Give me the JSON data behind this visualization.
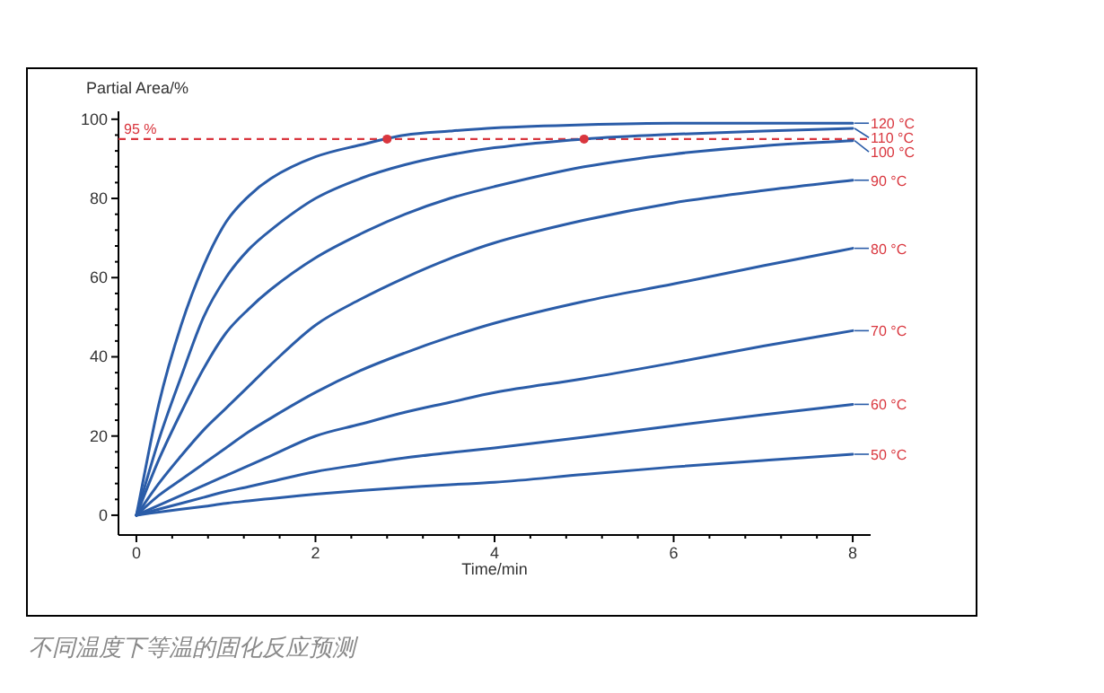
{
  "chart_data": {
    "type": "line",
    "xlabel": "Time/min",
    "ylabel": "Partial Area/%",
    "x": [
      0,
      0.25,
      0.5,
      0.75,
      1,
      1.25,
      1.5,
      2,
      2.5,
      3,
      3.5,
      4,
      5,
      6,
      7,
      8
    ],
    "xlim": [
      -0.2,
      8.2
    ],
    "xticks": [
      0,
      2,
      4,
      6,
      8
    ],
    "ylim": [
      -5,
      102
    ],
    "yticks": [
      0,
      20,
      40,
      60,
      80,
      100
    ],
    "grid": false,
    "legend": "right",
    "marker": "none",
    "line_style": "solid",
    "series": [
      {
        "name": "120 °C",
        "color": "#2a5ca8",
        "values": [
          0,
          28,
          48,
          63,
          74,
          80.5,
          85,
          90.5,
          93.5,
          96,
          97,
          97.8,
          98.6,
          99,
          99,
          99
        ]
      },
      {
        "name": "110 °C",
        "color": "#2a5ca8",
        "values": [
          0,
          19,
          35,
          50,
          60,
          67,
          72,
          80,
          85,
          88.5,
          91,
          92.8,
          95,
          96.2,
          97,
          97.7
        ]
      },
      {
        "name": "100 °C",
        "color": "#2a5ca8",
        "values": [
          0,
          14,
          26,
          37,
          46,
          52,
          57,
          65,
          71,
          76,
          80,
          83,
          88,
          91.2,
          93.3,
          94.6
        ]
      },
      {
        "name": "90 °C",
        "color": "#2a5ca8",
        "values": [
          0,
          8,
          15,
          21.5,
          27,
          32.5,
          38,
          48,
          54.5,
          60,
          64.8,
          68.8,
          74.5,
          78.9,
          82,
          84.6
        ]
      },
      {
        "name": "80 °C",
        "color": "#2a5ca8",
        "values": [
          0,
          5,
          9,
          13,
          17,
          21,
          24.5,
          31,
          36.5,
          41,
          45,
          48.5,
          54,
          58.4,
          63,
          67.4
        ]
      },
      {
        "name": "70 °C",
        "color": "#2a5ca8",
        "values": [
          0,
          2.5,
          5,
          7.5,
          10,
          12.5,
          15,
          20,
          23,
          26,
          28.5,
          31,
          34.5,
          38.5,
          42.7,
          46.6
        ]
      },
      {
        "name": "60 °C",
        "color": "#2a5ca8",
        "values": [
          0,
          1.5,
          3,
          4.5,
          6,
          7.2,
          8.5,
          11,
          12.8,
          14.5,
          15.8,
          17,
          19.7,
          22.6,
          25.4,
          28
        ]
      },
      {
        "name": "50 °C",
        "color": "#2a5ca8",
        "values": [
          0,
          0.8,
          1.5,
          2.2,
          3,
          3.6,
          4.2,
          5.3,
          6.2,
          7,
          7.7,
          8.3,
          10.3,
          12.2,
          13.8,
          15.4
        ]
      },
      {
        "type": "scatter",
        "marker": "circle",
        "color": "#d9363e",
        "x": [
          2.8,
          5.0
        ],
        "values": [
          95,
          95
        ]
      }
    ],
    "ref_lines": [
      {
        "axis": "y",
        "value": 95,
        "label": "95 %",
        "color": "#d9363e",
        "line_style": "dashed"
      }
    ],
    "annotations": [
      "不同温度下等温的固化反应预测"
    ]
  }
}
